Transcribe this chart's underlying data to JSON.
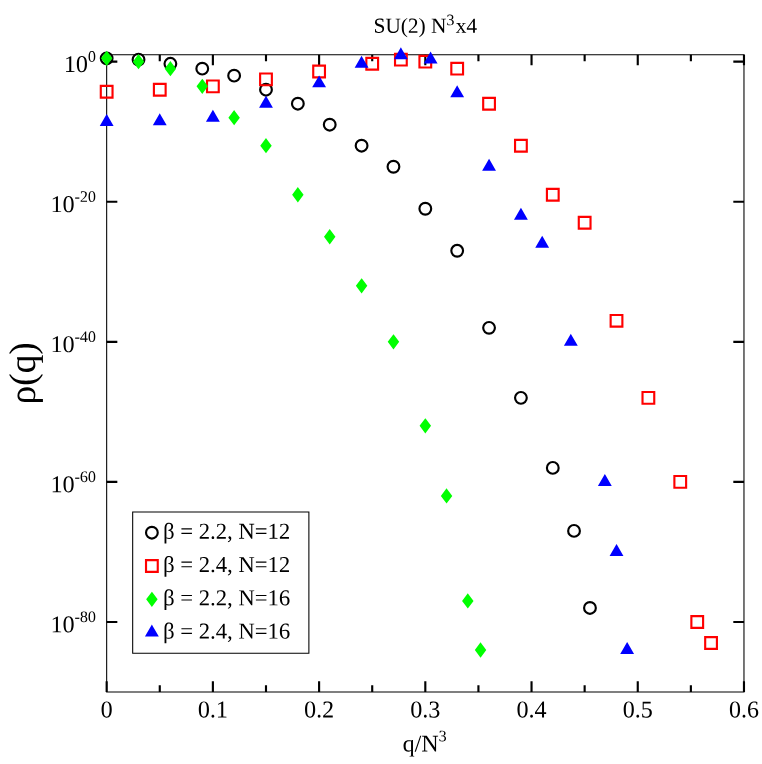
{
  "chart_data": {
    "type": "scatter",
    "title": "SU(2) N$^{3}$x4",
    "xlabel": "q/N$^{3}$",
    "ylabel": "ρ(q)",
    "log": "y",
    "xlim": [
      0,
      0.6
    ],
    "ylim": [
      1e-90,
      10
    ],
    "xticks": [
      0,
      0.1,
      0.2,
      0.3,
      0.4,
      0.5,
      0.6
    ],
    "yticks": [
      {
        "value": 1,
        "label": "10$^{0}$"
      },
      {
        "value": 1e-20,
        "label": "10$^{-20}$"
      },
      {
        "value": 1e-40,
        "label": "10$^{-40}$"
      },
      {
        "value": 1e-60,
        "label": "10$^{-60}$"
      },
      {
        "value": 1e-80,
        "label": "10$^{-80}$"
      }
    ],
    "legend": "bottom left",
    "series": [
      {
        "name": "β = 2.2, N=12",
        "color": "#000000",
        "marker": "circle",
        "x": [
          0,
          0.03,
          0.06,
          0.09,
          0.12,
          0.15,
          0.18,
          0.21,
          0.24,
          0.27,
          0.3,
          0.33,
          0.36,
          0.39,
          0.42,
          0.44,
          0.455
        ],
        "values": [
          3,
          2,
          0.5,
          0.1,
          0.01,
          0.0001,
          1e-06,
          1e-09,
          1e-12,
          1e-15,
          1e-21,
          1e-27,
          1e-38,
          1e-48,
          1e-58,
          1e-67,
          1e-78
        ]
      },
      {
        "name": "β = 2.4, N=12",
        "color": "#ff0000",
        "marker": "square",
        "x": [
          0,
          0.05,
          0.1,
          0.15,
          0.2,
          0.25,
          0.277,
          0.3,
          0.33,
          0.36,
          0.39,
          0.42,
          0.45,
          0.48,
          0.51,
          0.54,
          0.556,
          0.569
        ],
        "values": [
          5e-05,
          0.0001,
          0.0003,
          0.003,
          0.04,
          0.5,
          2,
          1,
          0.1,
          1e-06,
          1e-12,
          1e-19,
          1e-23,
          1e-37,
          1e-48,
          1e-60,
          1e-80,
          1e-83
        ]
      },
      {
        "name": "β = 2.2, N=16",
        "color": "#00ff00",
        "marker": "diamond",
        "x": [
          0,
          0.03,
          0.06,
          0.09,
          0.12,
          0.15,
          0.18,
          0.21,
          0.24,
          0.27,
          0.3,
          0.32,
          0.34,
          0.352
        ],
        "values": [
          3,
          1,
          0.1,
          0.0003,
          1e-08,
          1e-12,
          1e-19,
          1e-25,
          1e-32,
          1e-40,
          1e-52,
          1e-62,
          1e-77,
          1e-84
        ]
      },
      {
        "name": "β = 2.4, N=16",
        "color": "#0000ff",
        "marker": "triangle",
        "x": [
          0,
          0.05,
          0.1,
          0.15,
          0.2,
          0.24,
          0.277,
          0.305,
          0.33,
          0.36,
          0.39,
          0.41,
          0.437,
          0.469,
          0.48,
          0.49
        ],
        "values": [
          2.5e-09,
          3e-09,
          1e-08,
          1e-06,
          0.0008,
          0.5,
          8,
          2,
          3e-05,
          1e-15,
          1e-22,
          1e-26,
          1e-40,
          1e-60,
          1e-70,
          1e-84
        ]
      }
    ]
  }
}
